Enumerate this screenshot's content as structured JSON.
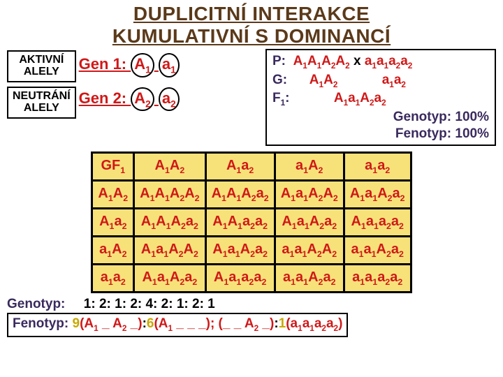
{
  "title": {
    "line1": "DUPLICITNÍ INTERAKCE",
    "line2": "KUMULATIVNÍ S DOMINANCÍ"
  },
  "left_labels": {
    "aktivni": "AKTIVNÍ\nALELY",
    "neutrani": "NEUTRÁNÍ\nALELY"
  },
  "gen": {
    "l1_pre": "Gen 1: ",
    "l2_pre": "Gen 2: "
  },
  "cross": {
    "p_lbl": "P:",
    "g_lbl": "G:",
    "f_lbl": "F",
    "genotyp": "Genotyp: 100%",
    "fenotyp": "Fenotyp: 100%"
  },
  "punnett": {
    "corner": "GF"
  },
  "bottom": {
    "gen_lbl": "Genotyp:",
    "gen_ratio": "1: 2: 1: 2: 4: 2: 1: 2: 1",
    "fen_lbl": "Fenotyp:"
  }
}
